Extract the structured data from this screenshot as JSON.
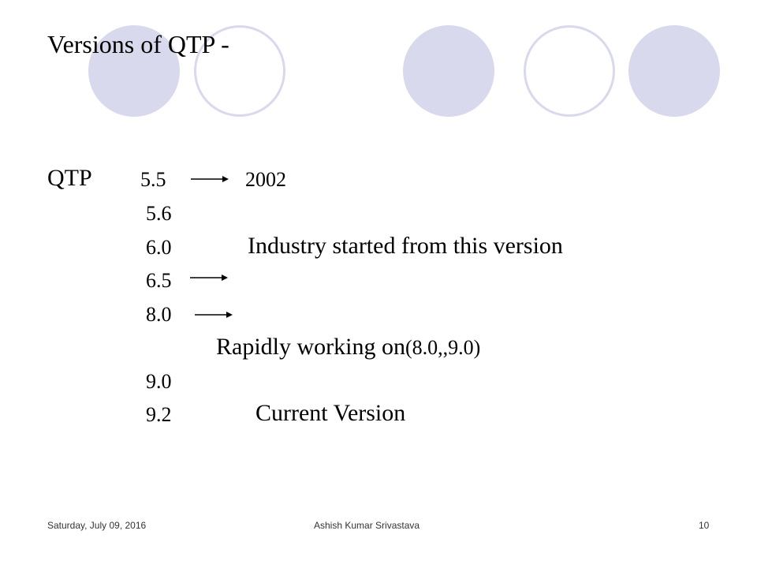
{
  "slide": {
    "title": "Versions of QTP -",
    "product": "QTP",
    "versions": [
      {
        "version": "5.5",
        "year": "2002"
      },
      {
        "version": "5.6"
      },
      {
        "version": "6.0",
        "note": "Industry started from this version"
      },
      {
        "version": "6.5"
      },
      {
        "version": "8.0"
      },
      {
        "version": "9.0"
      },
      {
        "version": "9.2",
        "note": "Current Version"
      }
    ],
    "rapid_note_prefix": "Rapidly working on",
    "rapid_note_suffix": "(8.0,,9.0)"
  },
  "footer": {
    "date": "Saturday, July 09, 2016",
    "author": "Ashish Kumar Srivastava",
    "page_number": "10"
  },
  "colors": {
    "circle_fill": "#d9d9ee",
    "text": "#000000"
  }
}
